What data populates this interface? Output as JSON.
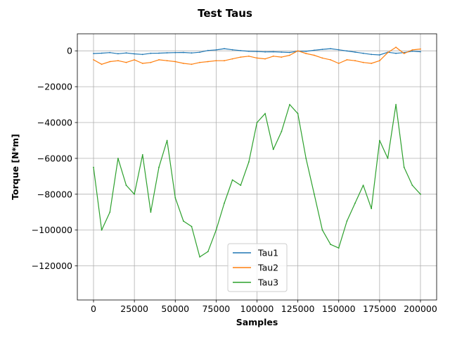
{
  "chart_data": {
    "type": "line",
    "title": "Test Taus",
    "xlabel": "Samples",
    "ylabel": "Torque [N*m]",
    "xlim": [
      -9900,
      209900
    ],
    "ylim": [
      -139000,
      9500
    ],
    "xticks": [
      0,
      25000,
      50000,
      75000,
      100000,
      125000,
      150000,
      175000,
      200000
    ],
    "xtick_labels": [
      "0",
      "25000",
      "50000",
      "75000",
      "100000",
      "125000",
      "150000",
      "175000",
      "200000"
    ],
    "yticks": [
      0,
      -20000,
      -40000,
      -60000,
      -80000,
      -100000,
      -120000
    ],
    "ytick_labels": [
      "0",
      "−20000",
      "−40000",
      "−60000",
      "−80000",
      "−100000",
      "−120000"
    ],
    "grid": true,
    "legend_position": "lower center",
    "x": [
      0,
      5000,
      10000,
      15000,
      20000,
      25000,
      30000,
      35000,
      40000,
      45000,
      50000,
      55000,
      60000,
      65000,
      70000,
      75000,
      80000,
      85000,
      90000,
      95000,
      100000,
      105000,
      110000,
      115000,
      120000,
      125000,
      130000,
      135000,
      140000,
      145000,
      150000,
      155000,
      160000,
      165000,
      170000,
      175000,
      180000,
      185000,
      190000,
      195000,
      200000
    ],
    "series": [
      {
        "name": "Tau1",
        "color": "#1f77b4",
        "values": [
          -1500,
          -1300,
          -1000,
          -1600,
          -1200,
          -1700,
          -2000,
          -1400,
          -1300,
          -1100,
          -1000,
          -900,
          -1200,
          -800,
          200,
          500,
          1200,
          600,
          100,
          -300,
          -400,
          -600,
          -500,
          -700,
          -900,
          -200,
          -300,
          300,
          800,
          1200,
          600,
          -100,
          -700,
          -1400,
          -2000,
          -2300,
          -800,
          -1400,
          -1000,
          -200,
          -500
        ]
      },
      {
        "name": "Tau2",
        "color": "#ff7f0e",
        "values": [
          -5000,
          -7500,
          -6000,
          -5500,
          -6500,
          -5000,
          -7000,
          -6500,
          -5000,
          -5500,
          -6000,
          -7000,
          -7500,
          -6500,
          -6000,
          -5500,
          -5500,
          -4500,
          -3500,
          -3000,
          -4000,
          -4500,
          -3000,
          -3500,
          -2500,
          0,
          -1500,
          -2500,
          -4000,
          -5000,
          -7000,
          -5000,
          -5500,
          -6500,
          -7000,
          -5500,
          -1000,
          2000,
          -1500,
          500,
          1000
        ]
      },
      {
        "name": "Tau3",
        "color": "#2ca02c",
        "values": [
          -65000,
          -100000,
          -90000,
          -60000,
          -75000,
          -80000,
          -58000,
          -90000,
          -65000,
          -50000,
          -82000,
          -95000,
          -98000,
          -115000,
          -112000,
          -100000,
          -85000,
          -72000,
          -75000,
          -62000,
          -40000,
          -35000,
          -55000,
          -45000,
          -30000,
          -35000,
          -60000,
          -80000,
          -100000,
          -108000,
          -110000,
          -95000,
          -85000,
          -75000,
          -88000,
          -50000,
          -60000,
          -30000,
          -65000,
          -75000,
          -80000
        ]
      }
    ]
  }
}
